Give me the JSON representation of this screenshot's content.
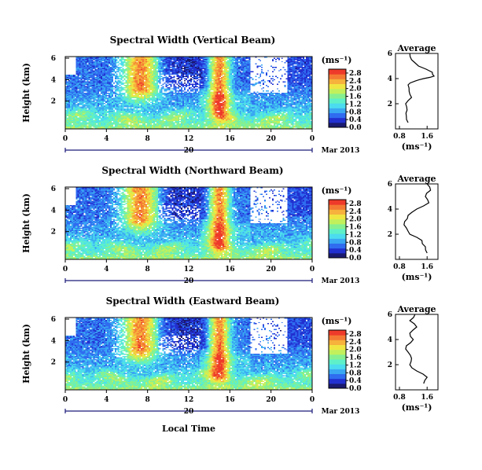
{
  "figure": {
    "xlabel": "Local Time",
    "colors": [
      "#1a1a70",
      "#2230d0",
      "#2f6cf0",
      "#3aa8f2",
      "#4cdcef",
      "#5ef0c8",
      "#86f090",
      "#c2f05c",
      "#f0e642",
      "#f6b23c",
      "#f47a34",
      "#ee3a2a"
    ]
  },
  "chart_data": [
    {
      "type": "heatmap",
      "title": "Spectral Width (Vertical Beam)",
      "ylabel": "Height (km)",
      "ylim": [
        6,
        0
      ],
      "yticks": [
        "6",
        "4",
        "2"
      ],
      "xlim": [
        0,
        24
      ],
      "xticks": [
        "0",
        "4",
        "8",
        "12",
        "16",
        "20",
        "0"
      ],
      "date_label": "20",
      "month_label": "Mar 2013",
      "colorbar": {
        "unit": "(ms⁻¹)",
        "ticks": [
          "2.8",
          "2.4",
          "2.0",
          "1.6",
          "1.2",
          "0.8",
          "0.4",
          "0.0"
        ],
        "range": [
          0,
          3.0
        ]
      },
      "profile": {
        "title": "Average",
        "xlabel": "(ms⁻¹)",
        "xticks": [
          "0.8",
          "1.6"
        ],
        "xlim": [
          0.8,
          1.8
        ],
        "ylim": [
          0,
          6
        ],
        "yticks": [
          "6",
          "4",
          "2"
        ],
        "height": [
          0.5,
          1.0,
          1.5,
          2.0,
          2.5,
          3.0,
          3.5,
          3.8,
          4.0,
          4.2,
          4.5,
          5.0,
          5.5,
          6.0
        ],
        "width": [
          1.05,
          1.0,
          1.02,
          0.98,
          1.15,
          1.08,
          1.05,
          1.25,
          1.5,
          1.8,
          1.75,
          1.35,
          1.15,
          1.1
        ]
      }
    },
    {
      "type": "heatmap",
      "title": "Spectral Width (Northward Beam)",
      "ylabel": "Height (km)",
      "ylim": [
        6,
        0
      ],
      "yticks": [
        "6",
        "4",
        "2"
      ],
      "xlim": [
        0,
        24
      ],
      "xticks": [
        "0",
        "4",
        "8",
        "12",
        "16",
        "20",
        "0"
      ],
      "date_label": "20",
      "month_label": "Mar 2013",
      "colorbar": {
        "unit": "(ms⁻¹)",
        "ticks": [
          "2.8",
          "2.4",
          "2.0",
          "1.6",
          "1.2",
          "0.8",
          "0.4",
          "0.0"
        ],
        "range": [
          0,
          3.0
        ]
      },
      "profile": {
        "title": "Average",
        "xlabel": "(ms⁻¹)",
        "xticks": [
          "0.8",
          "1.6"
        ],
        "xlim": [
          0.8,
          1.8
        ],
        "ylim": [
          0,
          6
        ],
        "yticks": [
          "6",
          "4",
          "2"
        ],
        "height": [
          0.5,
          1.0,
          1.5,
          2.0,
          2.5,
          3.0,
          3.5,
          4.0,
          4.5,
          5.0,
          5.5,
          6.0
        ],
        "width": [
          1.6,
          1.55,
          1.45,
          1.1,
          1.0,
          0.95,
          1.05,
          1.3,
          1.65,
          1.55,
          1.7,
          1.6
        ]
      }
    },
    {
      "type": "heatmap",
      "title": "Spectral Width (Eastward Beam)",
      "ylabel": "Height (km)",
      "ylim": [
        6,
        0
      ],
      "yticks": [
        "6",
        "4",
        "2"
      ],
      "xlim": [
        0,
        24
      ],
      "xticks": [
        "0",
        "4",
        "8",
        "12",
        "16",
        "20",
        "0"
      ],
      "date_label": "20",
      "month_label": "Mar 2013",
      "colorbar": {
        "unit": "(ms⁻¹)",
        "ticks": [
          "2.8",
          "2.4",
          "2.0",
          "1.6",
          "1.2",
          "0.8",
          "0.4",
          "0.0"
        ],
        "range": [
          0,
          3.0
        ]
      },
      "profile": {
        "title": "Average",
        "xlabel": "(ms⁻¹)",
        "xticks": [
          "0.8",
          "1.6"
        ],
        "xlim": [
          0.8,
          1.8
        ],
        "ylim": [
          0,
          6
        ],
        "yticks": [
          "6",
          "4",
          "2"
        ],
        "height": [
          0.5,
          1.0,
          1.5,
          2.0,
          2.5,
          3.0,
          3.5,
          4.0,
          4.5,
          5.0,
          5.5,
          6.0
        ],
        "width": [
          1.5,
          1.6,
          1.3,
          1.1,
          1.15,
          1.05,
          1.0,
          1.2,
          1.1,
          1.3,
          1.1,
          1.25
        ]
      }
    }
  ]
}
